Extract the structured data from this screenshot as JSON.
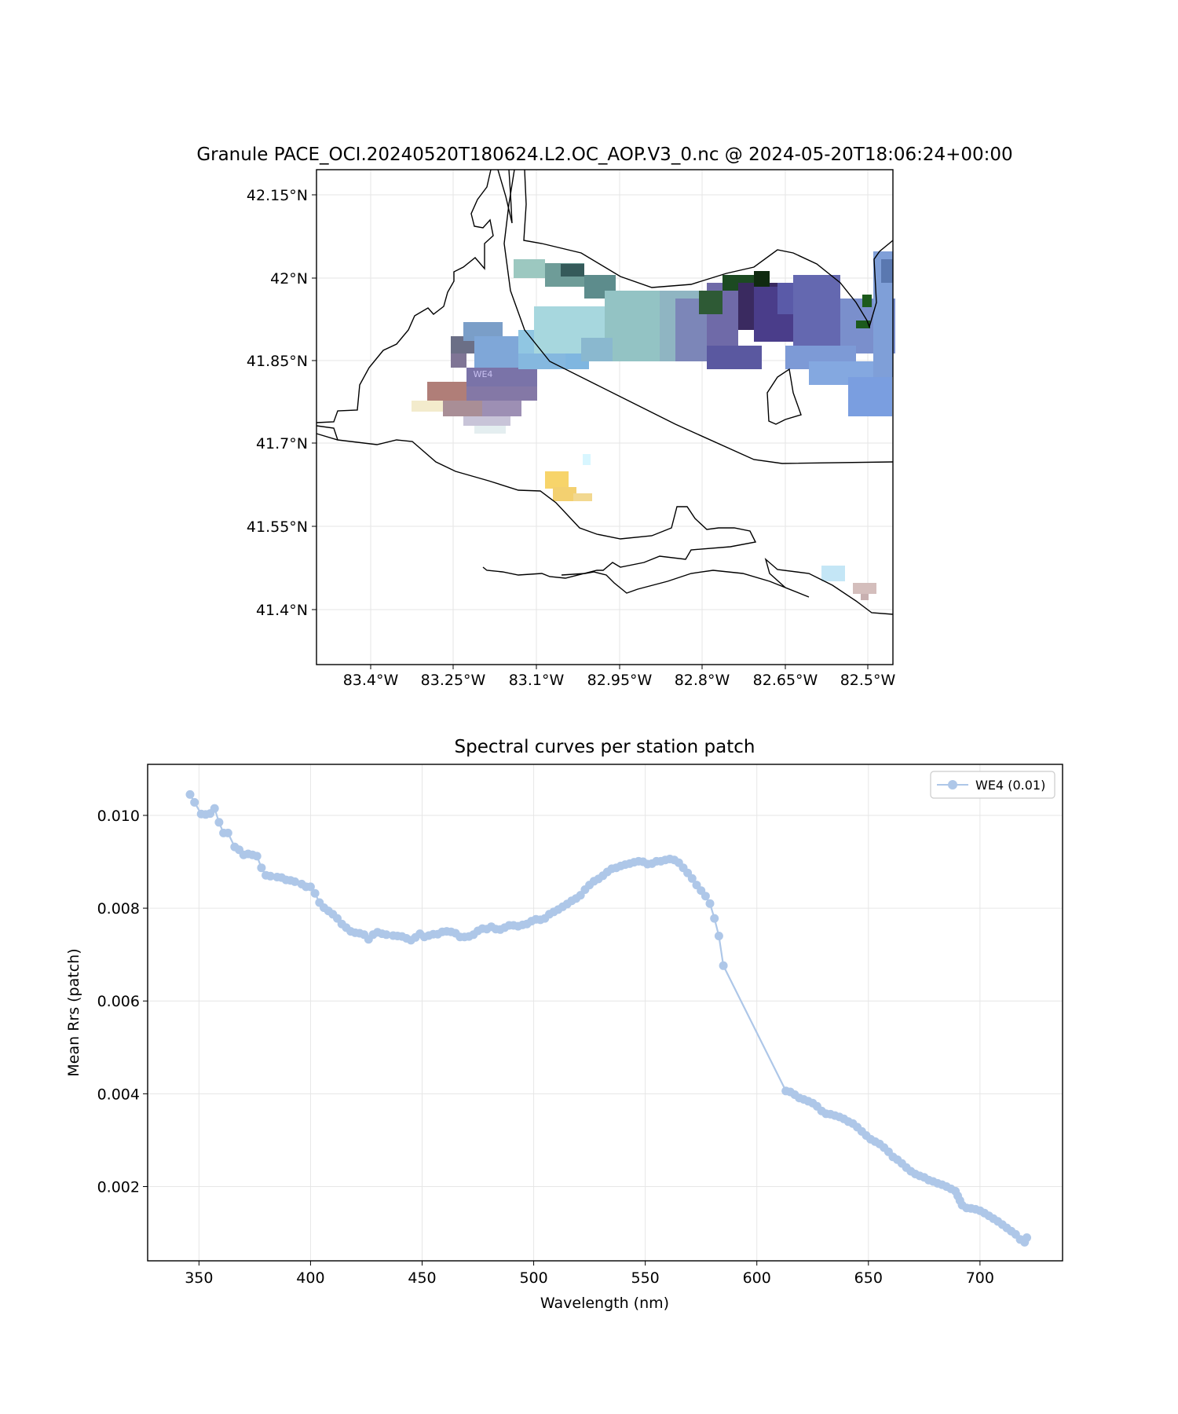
{
  "map": {
    "title": "Granule PACE_OCI.20240520T180624.L2.OC_AOP.V3_0.nc @ 2024-05-20T18:06:24+00:00",
    "lat_ticks": [
      "42.15°N",
      "42°N",
      "41.85°N",
      "41.7°N",
      "41.55°N",
      "41.4°N"
    ],
    "lon_ticks": [
      "83.4°W",
      "83.25°W",
      "83.1°W",
      "82.95°W",
      "82.8°W",
      "82.65°W",
      "82.5°W"
    ],
    "station_label": "WE4",
    "grid": true
  },
  "chart_data": {
    "type": "line",
    "title": "Spectral curves per station patch",
    "xlabel": "Wavelength (nm)",
    "ylabel": "Mean Rrs (patch)",
    "xlim": [
      327,
      737
    ],
    "ylim": [
      0.0004,
      0.0111
    ],
    "xticks": [
      350,
      400,
      450,
      500,
      550,
      600,
      650,
      700
    ],
    "yticks": [
      0.002,
      0.004,
      0.006,
      0.008,
      0.01
    ],
    "ytick_labels": [
      "0.002",
      "0.004",
      "0.006",
      "0.008",
      "0.010"
    ],
    "grid": true,
    "legend_position": "top-right",
    "series": [
      {
        "name": "WE4 (0.01)",
        "color": "#aec7e8",
        "points": [
          [
            346,
            0.01045
          ],
          [
            348,
            0.01028
          ],
          [
            351,
            0.01003
          ],
          [
            353,
            0.01002
          ],
          [
            355,
            0.01004
          ],
          [
            357,
            0.01015
          ],
          [
            359,
            0.00985
          ],
          [
            361,
            0.00962
          ],
          [
            363,
            0.00962
          ],
          [
            366,
            0.00932
          ],
          [
            368,
            0.00926
          ],
          [
            370,
            0.00915
          ],
          [
            372,
            0.00917
          ],
          [
            374,
            0.00915
          ],
          [
            376,
            0.00912
          ],
          [
            378,
            0.00887
          ],
          [
            380,
            0.00871
          ],
          [
            382,
            0.00869
          ],
          [
            385,
            0.00867
          ],
          [
            387,
            0.00866
          ],
          [
            389,
            0.00861
          ],
          [
            391,
            0.0086
          ],
          [
            393,
            0.00857
          ],
          [
            396,
            0.00852
          ],
          [
            398,
            0.00846
          ],
          [
            400,
            0.00846
          ],
          [
            402,
            0.00832
          ],
          [
            404,
            0.00812
          ],
          [
            406,
            0.00801
          ],
          [
            408,
            0.00794
          ],
          [
            410,
            0.00787
          ],
          [
            412,
            0.00778
          ],
          [
            414,
            0.00766
          ],
          [
            416,
            0.00758
          ],
          [
            418,
            0.0075
          ],
          [
            420,
            0.00747
          ],
          [
            422,
            0.00746
          ],
          [
            424,
            0.00743
          ],
          [
            426,
            0.00733
          ],
          [
            428,
            0.00743
          ],
          [
            430,
            0.00748
          ],
          [
            432,
            0.00745
          ],
          [
            434,
            0.00743
          ],
          [
            437,
            0.00741
          ],
          [
            439,
            0.0074
          ],
          [
            441,
            0.00739
          ],
          [
            443,
            0.00735
          ],
          [
            445,
            0.00731
          ],
          [
            447,
            0.00737
          ],
          [
            449,
            0.00745
          ],
          [
            451,
            0.00738
          ],
          [
            453,
            0.00741
          ],
          [
            455,
            0.00744
          ],
          [
            457,
            0.00744
          ],
          [
            459,
            0.00749
          ],
          [
            461,
            0.0075
          ],
          [
            463,
            0.00749
          ],
          [
            465,
            0.00746
          ],
          [
            467,
            0.00738
          ],
          [
            469,
            0.00738
          ],
          [
            471,
            0.00739
          ],
          [
            473,
            0.00743
          ],
          [
            475,
            0.00751
          ],
          [
            477,
            0.00756
          ],
          [
            479,
            0.00755
          ],
          [
            481,
            0.0076
          ],
          [
            483,
            0.00755
          ],
          [
            485,
            0.00754
          ],
          [
            487,
            0.00758
          ],
          [
            489,
            0.00763
          ],
          [
            491,
            0.00763
          ],
          [
            493,
            0.00761
          ],
          [
            495,
            0.00764
          ],
          [
            497,
            0.00766
          ],
          [
            499,
            0.00772
          ],
          [
            501,
            0.00776
          ],
          [
            503,
            0.00775
          ],
          [
            505,
            0.00778
          ],
          [
            507,
            0.00787
          ],
          [
            509,
            0.00792
          ],
          [
            511,
            0.00797
          ],
          [
            513,
            0.00803
          ],
          [
            515,
            0.00809
          ],
          [
            517,
            0.00816
          ],
          [
            519,
            0.00821
          ],
          [
            521,
            0.00828
          ],
          [
            523,
            0.0084
          ],
          [
            525,
            0.0085
          ],
          [
            527,
            0.00858
          ],
          [
            529,
            0.00863
          ],
          [
            531,
            0.0087
          ],
          [
            533,
            0.00878
          ],
          [
            535,
            0.00885
          ],
          [
            537,
            0.00887
          ],
          [
            539,
            0.00891
          ],
          [
            541,
            0.00894
          ],
          [
            543,
            0.00896
          ],
          [
            545,
            0.00899
          ],
          [
            547,
            0.00901
          ],
          [
            549,
            0.009
          ],
          [
            551,
            0.00895
          ],
          [
            553,
            0.00896
          ],
          [
            555,
            0.00901
          ],
          [
            557,
            0.00901
          ],
          [
            559,
            0.00904
          ],
          [
            561,
            0.00906
          ],
          [
            563,
            0.00904
          ],
          [
            565,
            0.00898
          ],
          [
            567,
            0.00887
          ],
          [
            569,
            0.00876
          ],
          [
            571,
            0.00864
          ],
          [
            573,
            0.0085
          ],
          [
            575,
            0.00838
          ],
          [
            577,
            0.00826
          ],
          [
            579,
            0.0081
          ],
          [
            581,
            0.00778
          ],
          [
            583,
            0.0074
          ],
          [
            585,
            0.00676
          ],
          [
            613,
            0.00406
          ],
          [
            615,
            0.00404
          ],
          [
            617,
            0.00398
          ],
          [
            619,
            0.00391
          ],
          [
            621,
            0.00388
          ],
          [
            623,
            0.00384
          ],
          [
            625,
            0.0038
          ],
          [
            627,
            0.00373
          ],
          [
            629,
            0.00363
          ],
          [
            631,
            0.00357
          ],
          [
            633,
            0.00356
          ],
          [
            635,
            0.00353
          ],
          [
            637,
            0.0035
          ],
          [
            639,
            0.00346
          ],
          [
            641,
            0.0034
          ],
          [
            643,
            0.00336
          ],
          [
            645,
            0.00328
          ],
          [
            647,
            0.00319
          ],
          [
            649,
            0.0031
          ],
          [
            651,
            0.00302
          ],
          [
            653,
            0.00297
          ],
          [
            655,
            0.00292
          ],
          [
            657,
            0.00284
          ],
          [
            659,
            0.00275
          ],
          [
            661,
            0.00264
          ],
          [
            663,
            0.00258
          ],
          [
            665,
            0.0025
          ],
          [
            667,
            0.00241
          ],
          [
            669,
            0.00233
          ],
          [
            671,
            0.00227
          ],
          [
            673,
            0.00223
          ],
          [
            675,
            0.0022
          ],
          [
            677,
            0.00214
          ],
          [
            679,
            0.00211
          ],
          [
            681,
            0.00207
          ],
          [
            683,
            0.00204
          ],
          [
            685,
            0.002
          ],
          [
            687,
            0.00195
          ],
          [
            689,
            0.0019
          ],
          [
            690,
            0.0018
          ],
          [
            691,
            0.0017
          ],
          [
            692,
            0.0016
          ],
          [
            694,
            0.00154
          ],
          [
            696,
            0.00153
          ],
          [
            698,
            0.00151
          ],
          [
            700,
            0.00148
          ],
          [
            702,
            0.00143
          ],
          [
            704,
            0.00137
          ],
          [
            706,
            0.00131
          ],
          [
            708,
            0.00125
          ],
          [
            710,
            0.00118
          ],
          [
            712,
            0.00111
          ],
          [
            714,
            0.00104
          ],
          [
            716,
            0.00097
          ],
          [
            718,
            0.00086
          ],
          [
            720,
            0.0008
          ],
          [
            721,
            0.0009
          ]
        ]
      }
    ]
  }
}
